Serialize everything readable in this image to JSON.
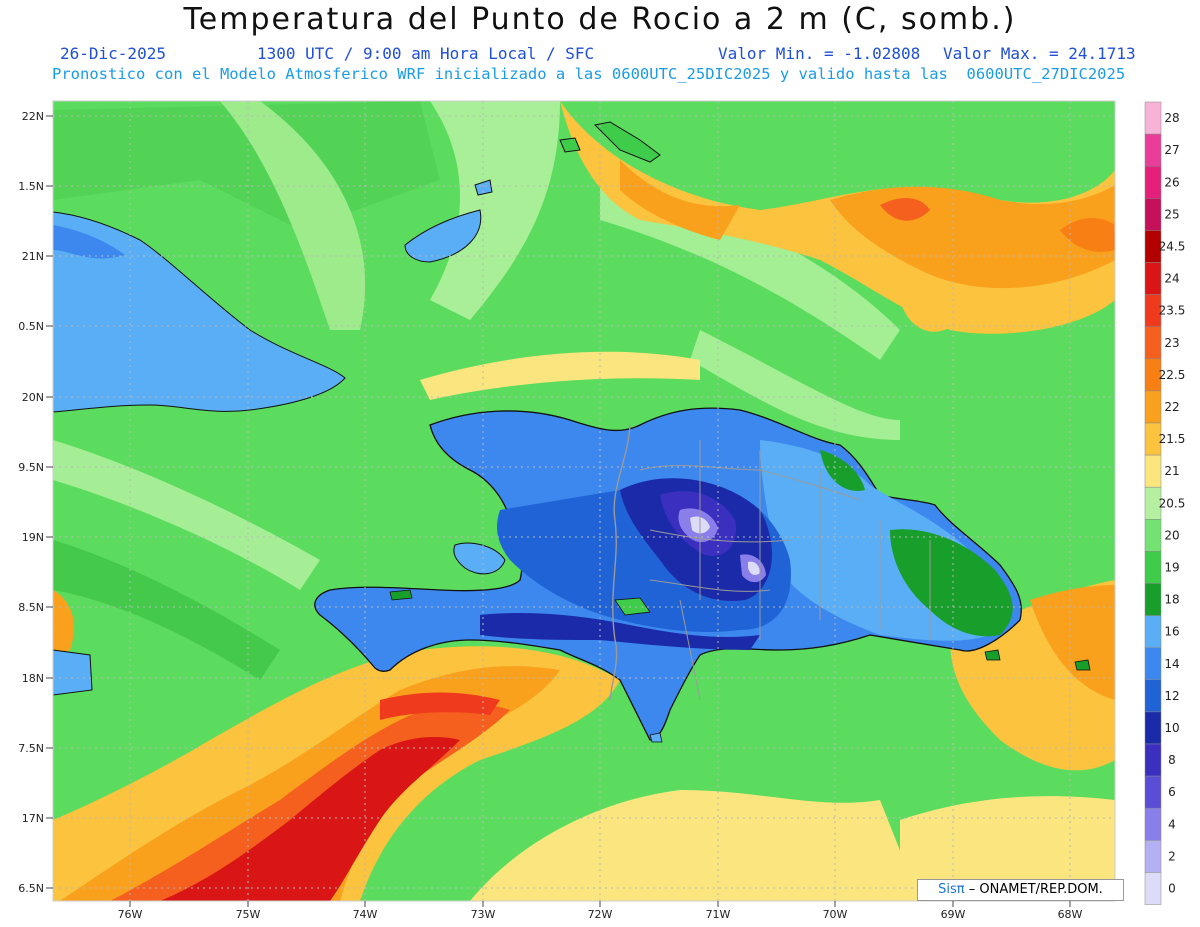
{
  "title": "Temperatura del Punto de Rocio a 2 m (C, somb.)",
  "header": {
    "date": "26-Dic-2025",
    "time": "1300 UTC / 9:00 am Hora Local / SFC",
    "min": "Valor Min. = -1.02808",
    "max": "Valor Max. = 24.1713",
    "model": "Pronostico con el Modelo Atmosferico WRF inicializado a las 0600UTC_25DIC2025 y valido hasta las  0600UTC_27DIC2025"
  },
  "axes": {
    "lat_labels": [
      "22N",
      "1.5N",
      "21N",
      "0.5N",
      "20N",
      "9.5N",
      "19N",
      "8.5N",
      "18N",
      "7.5N",
      "17N",
      "6.5N"
    ],
    "lon_labels": [
      "76W",
      "75W",
      "74W",
      "73W",
      "72W",
      "71W",
      "70W",
      "69W",
      "68W"
    ]
  },
  "colorbar": {
    "labels": [
      "28",
      "27",
      "26",
      "25",
      "24.5",
      "24",
      "23.5",
      "23",
      "22.5",
      "22",
      "21.5",
      "21",
      "20.5",
      "20",
      "19",
      "18",
      "16",
      "14",
      "12",
      "10",
      "8",
      "6",
      "4",
      "2",
      "0"
    ],
    "colors": [
      "#f7b3d6",
      "#ea3d9a",
      "#e5207a",
      "#c4115a",
      "#b30000",
      "#d91515",
      "#f03a1e",
      "#f5601e",
      "#f77f14",
      "#f9a11c",
      "#fbc33e",
      "#fbe57f",
      "#b4f0a0",
      "#73e272",
      "#3fcc4a",
      "#189e2a",
      "#5aaef5",
      "#3d88ee",
      "#1f63d6",
      "#1a2aa8",
      "#3b2fc0",
      "#5a4dd6",
      "#8a7eea",
      "#b5aff3",
      "#dcdcf8"
    ]
  },
  "credit": {
    "brand": "Sisπ",
    "text": "– ONAMET/REP.DOM."
  }
}
